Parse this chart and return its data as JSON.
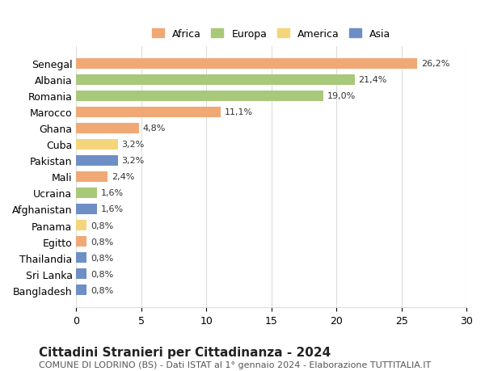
{
  "countries": [
    "Senegal",
    "Albania",
    "Romania",
    "Marocco",
    "Ghana",
    "Cuba",
    "Pakistan",
    "Mali",
    "Ucraina",
    "Afghanistan",
    "Panama",
    "Egitto",
    "Thailandia",
    "Sri Lanka",
    "Bangladesh"
  ],
  "values": [
    26.2,
    21.4,
    19.0,
    11.1,
    4.8,
    3.2,
    3.2,
    2.4,
    1.6,
    1.6,
    0.8,
    0.8,
    0.8,
    0.8,
    0.8
  ],
  "labels": [
    "26,2%",
    "21,4%",
    "19,0%",
    "11,1%",
    "4,8%",
    "3,2%",
    "3,2%",
    "2,4%",
    "1,6%",
    "1,6%",
    "0,8%",
    "0,8%",
    "0,8%",
    "0,8%",
    "0,8%"
  ],
  "continents": [
    "Africa",
    "Europa",
    "Europa",
    "Africa",
    "Africa",
    "America",
    "Asia",
    "Africa",
    "Europa",
    "Asia",
    "America",
    "Africa",
    "Asia",
    "Asia",
    "Asia"
  ],
  "continent_colors": {
    "Africa": "#F0A875",
    "Europa": "#A8C87A",
    "America": "#F5D57A",
    "Asia": "#6E8FC5"
  },
  "legend_order": [
    "Africa",
    "Europa",
    "America",
    "Asia"
  ],
  "title": "Cittadini Stranieri per Cittadinanza - 2024",
  "subtitle": "COMUNE DI LODRINO (BS) - Dati ISTAT al 1° gennaio 2024 - Elaborazione TUTTITALIA.IT",
  "xlim": [
    0,
    30
  ],
  "xticks": [
    0,
    5,
    10,
    15,
    20,
    25,
    30
  ],
  "background_color": "#ffffff",
  "grid_color": "#dddddd",
  "title_fontsize": 11,
  "subtitle_fontsize": 8,
  "bar_label_fontsize": 8,
  "axis_label_fontsize": 9
}
